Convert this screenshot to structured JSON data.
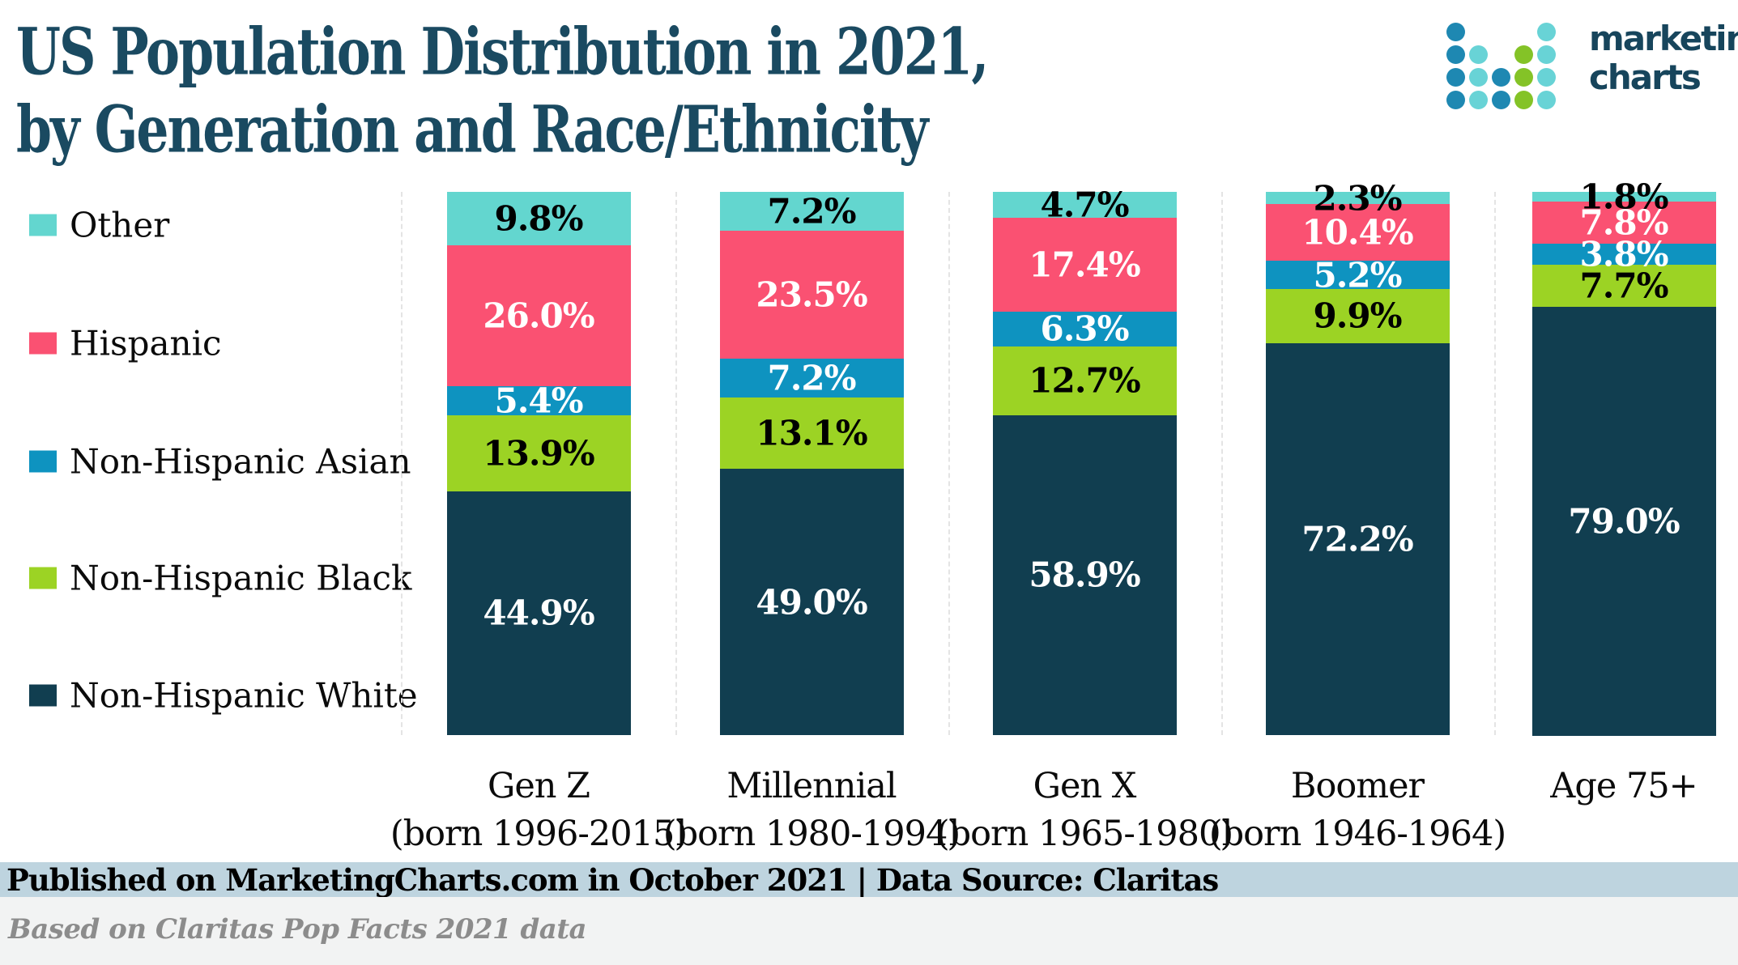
{
  "header": {
    "title_line1": "US Population Distribution in 2021,",
    "title_line2": "by Generation and Race/Ethnicity",
    "logo_line1": "marketing",
    "logo_line2": "charts",
    "logo_dot_colors": {
      "b": "#1e88b2",
      "t": "#68d3d6",
      "g": "#84c327"
    },
    "logo_dots": [
      [
        "b",
        null,
        null,
        null,
        "t"
      ],
      [
        "b",
        "t",
        null,
        "g",
        "t"
      ],
      [
        "b",
        "t",
        "b",
        "g",
        "t"
      ],
      [
        "b",
        "t",
        "b",
        "g",
        "t"
      ]
    ],
    "title_color": "#1a4a61"
  },
  "legend": {
    "items": [
      {
        "label": "Other",
        "color": "#63d6cf"
      },
      {
        "label": "Hispanic",
        "color": "#fa5172"
      },
      {
        "label": "Non-Hispanic Asian",
        "color": "#0e93c0"
      },
      {
        "label": "Non-Hispanic Black",
        "color": "#9cd324"
      },
      {
        "label": "Non-Hispanic White",
        "color": "#113e50"
      }
    ]
  },
  "chart_data": {
    "type": "bar",
    "subtype": "100%-stacked-vertical",
    "title": "US Population Distribution in 2021, by Generation and Race/Ethnicity",
    "categories": [
      "Gen Z",
      "Millennial",
      "Gen X",
      "Boomer",
      "Age 75+"
    ],
    "category_sublabels": [
      "(born 1996-2015)",
      "(born 1980-1994)",
      "(born 1965-1980)",
      "(born 1946-1964)",
      ""
    ],
    "series": [
      {
        "name": "Other",
        "color": "#63d6cf",
        "label_color": "#000000",
        "values": [
          9.8,
          7.2,
          4.7,
          2.3,
          1.8
        ]
      },
      {
        "name": "Hispanic",
        "color": "#fa5172",
        "label_color": "#ffffff",
        "values": [
          26.0,
          23.5,
          17.4,
          10.4,
          7.8
        ]
      },
      {
        "name": "Non-Hispanic Asian",
        "color": "#0e93c0",
        "label_color": "#ffffff",
        "values": [
          5.4,
          7.2,
          6.3,
          5.2,
          3.8
        ]
      },
      {
        "name": "Non-Hispanic Black",
        "color": "#9cd324",
        "label_color": "#000000",
        "values": [
          13.9,
          13.1,
          12.7,
          9.9,
          7.7
        ]
      },
      {
        "name": "Non-Hispanic White",
        "color": "#113e50",
        "label_color": "#ffffff",
        "values": [
          44.9,
          49.0,
          58.9,
          72.2,
          79.0
        ]
      }
    ],
    "value_suffix": "%",
    "value_decimals": 1,
    "ylim": [
      0,
      100
    ],
    "stack_order_top_to_bottom": [
      "Other",
      "Hispanic",
      "Non-Hispanic Asian",
      "Non-Hispanic Black",
      "Non-Hispanic White"
    ],
    "legend_position": "left",
    "grid": "dashed column separators"
  },
  "footer": {
    "published_line": "Published on MarketingCharts.com in October 2021 | Data Source: Claritas",
    "source_note": "Based on Claritas Pop Facts 2021 data",
    "band_color": "#bed4df",
    "note_background": "#f2f3f3"
  }
}
